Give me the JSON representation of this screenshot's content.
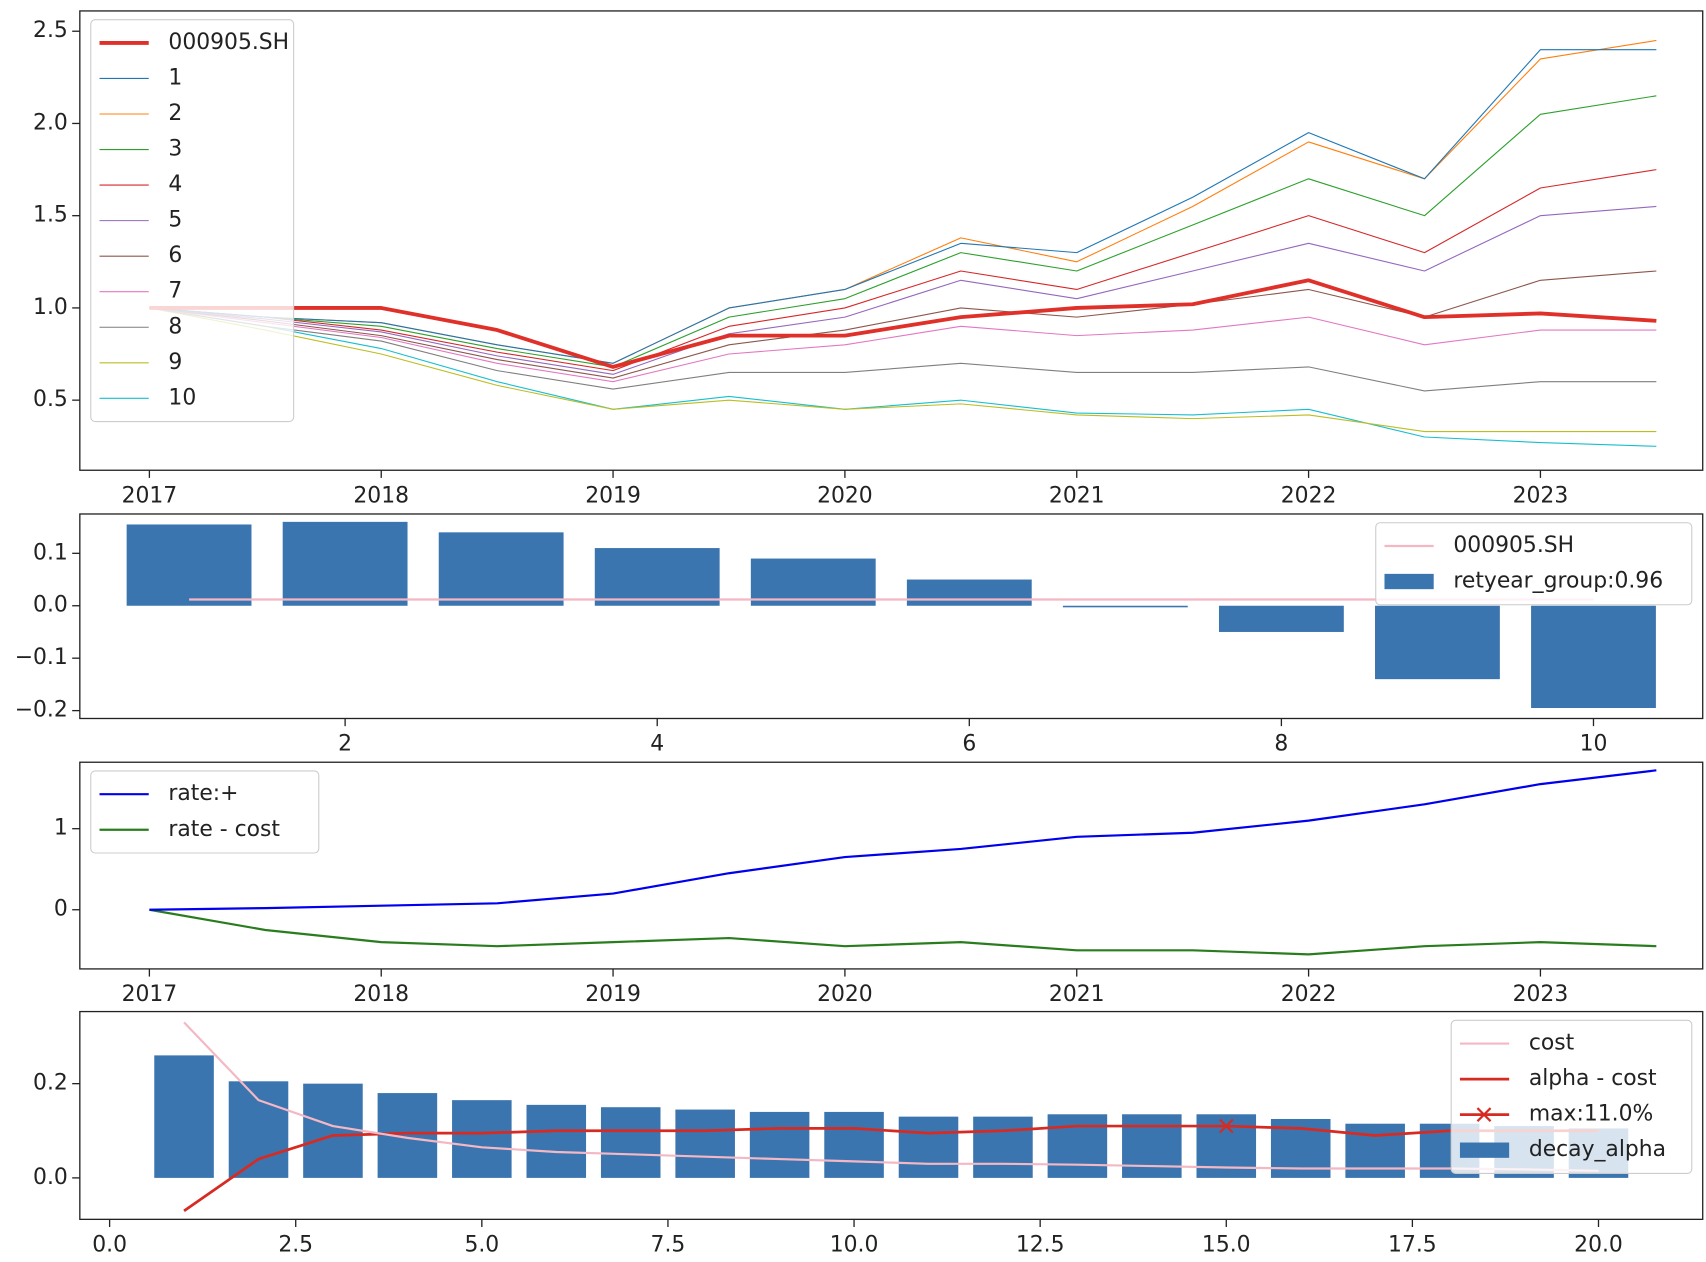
{
  "chart_data": [
    {
      "type": "line",
      "x": [
        2017.0,
        2017.5,
        2018.0,
        2018.5,
        2019.0,
        2019.5,
        2020.0,
        2020.5,
        2021.0,
        2021.5,
        2022.0,
        2022.5,
        2023.0,
        2023.5
      ],
      "xlim": [
        2016.7,
        2023.7
      ],
      "xticks": [
        2017,
        2018,
        2019,
        2020,
        2021,
        2022,
        2023
      ],
      "ylim": [
        0.12,
        2.61
      ],
      "yticks": [
        0.5,
        {
          "value": 1.0,
          "label": "1.0"
        },
        1.5,
        {
          "value": 2.0,
          "label": "2.0"
        },
        2.5
      ],
      "legend": "upper left",
      "series": [
        {
          "name": "000905.SH",
          "color": "#e0302a",
          "linewidth": 3.5,
          "values": [
            1.0,
            1.0,
            1.0,
            0.88,
            0.68,
            0.85,
            0.85,
            0.95,
            1.0,
            1.02,
            1.15,
            0.95,
            0.97,
            0.93
          ]
        },
        {
          "name": "1",
          "color": "#1f77b4",
          "linewidth": 1,
          "values": [
            1.0,
            0.95,
            0.92,
            0.8,
            0.7,
            1.0,
            1.1,
            1.35,
            1.3,
            1.6,
            1.95,
            1.7,
            2.4,
            2.4
          ]
        },
        {
          "name": "2",
          "color": "#ff7f0e",
          "linewidth": 1,
          "values": [
            1.0,
            0.95,
            0.92,
            0.8,
            0.7,
            1.0,
            1.1,
            1.38,
            1.25,
            1.55,
            1.9,
            1.7,
            2.35,
            2.45
          ]
        },
        {
          "name": "3",
          "color": "#2ca02c",
          "linewidth": 1,
          "values": [
            1.0,
            0.95,
            0.9,
            0.78,
            0.68,
            0.95,
            1.05,
            1.3,
            1.2,
            1.45,
            1.7,
            1.5,
            2.05,
            2.15
          ]
        },
        {
          "name": "4",
          "color": "#d62728",
          "linewidth": 1,
          "values": [
            1.0,
            0.95,
            0.88,
            0.76,
            0.66,
            0.9,
            1.0,
            1.2,
            1.1,
            1.3,
            1.5,
            1.3,
            1.65,
            1.75
          ]
        },
        {
          "name": "5",
          "color": "#9467bd",
          "linewidth": 1,
          "values": [
            1.0,
            0.94,
            0.87,
            0.74,
            0.64,
            0.86,
            0.95,
            1.15,
            1.05,
            1.2,
            1.35,
            1.2,
            1.5,
            1.55
          ]
        },
        {
          "name": "6",
          "color": "#8c564b",
          "linewidth": 1,
          "values": [
            1.0,
            0.93,
            0.85,
            0.72,
            0.62,
            0.8,
            0.88,
            1.0,
            0.95,
            1.02,
            1.1,
            0.95,
            1.15,
            1.2
          ]
        },
        {
          "name": "7",
          "color": "#e377c2",
          "linewidth": 1,
          "values": [
            1.0,
            0.92,
            0.84,
            0.7,
            0.6,
            0.75,
            0.8,
            0.9,
            0.85,
            0.88,
            0.95,
            0.8,
            0.88,
            0.88
          ]
        },
        {
          "name": "8",
          "color": "#7f7f7f",
          "linewidth": 1,
          "values": [
            1.0,
            0.9,
            0.82,
            0.66,
            0.56,
            0.65,
            0.65,
            0.7,
            0.65,
            0.65,
            0.68,
            0.55,
            0.6,
            0.6
          ]
        },
        {
          "name": "9",
          "color": "#bcbd22",
          "linewidth": 1,
          "values": [
            1.0,
            0.88,
            0.75,
            0.58,
            0.45,
            0.5,
            0.45,
            0.48,
            0.42,
            0.4,
            0.42,
            0.33,
            0.33,
            0.33
          ]
        },
        {
          "name": "10",
          "color": "#17becf",
          "linewidth": 1,
          "values": [
            1.0,
            0.9,
            0.78,
            0.6,
            0.45,
            0.52,
            0.45,
            0.5,
            0.43,
            0.42,
            0.45,
            0.3,
            0.27,
            0.25
          ]
        }
      ]
    },
    {
      "type": "bar",
      "x": [
        1,
        2,
        3,
        4,
        5,
        6,
        7,
        8,
        9,
        10
      ],
      "xlim": [
        0.3,
        10.7
      ],
      "xticks": [
        2,
        4,
        6,
        8,
        10
      ],
      "ylim": [
        -0.215,
        0.175
      ],
      "yticks": [
        {
          "value": -0.2,
          "label": "−0.2"
        },
        {
          "value": -0.1,
          "label": "−0.1"
        },
        {
          "value": 0.0,
          "label": "0.0"
        },
        0.1
      ],
      "legend": "upper right",
      "bar_width": 0.8,
      "series": [
        {
          "name": "000905.SH",
          "type": "line",
          "color": "#f4b8c4",
          "linewidth": 2,
          "values": [
            0.012,
            0.012,
            0.012,
            0.012,
            0.012,
            0.012,
            0.012,
            0.012,
            0.012,
            0.012
          ]
        },
        {
          "name": "retyear_group:0.96",
          "type": "bar",
          "color": "#3b75af",
          "values": [
            0.155,
            0.16,
            0.14,
            0.11,
            0.09,
            0.05,
            -0.003,
            -0.05,
            -0.14,
            -0.195
          ]
        }
      ]
    },
    {
      "type": "line",
      "x": [
        2017.0,
        2017.5,
        2018.0,
        2018.5,
        2019.0,
        2019.5,
        2020.0,
        2020.5,
        2021.0,
        2021.5,
        2022.0,
        2022.5,
        2023.0,
        2023.5
      ],
      "xlim": [
        2016.7,
        2023.7
      ],
      "xticks": [
        2017,
        2018,
        2019,
        2020,
        2021,
        2022,
        2023
      ],
      "ylim": [
        -0.73,
        1.82
      ],
      "yticks": [
        0,
        1
      ],
      "legend": "upper left",
      "series": [
        {
          "name": "rate:+",
          "color": "#0000ee",
          "linewidth": 2,
          "values": [
            0,
            0.02,
            0.05,
            0.08,
            0.2,
            0.45,
            0.65,
            0.75,
            0.9,
            0.95,
            1.1,
            1.3,
            1.55,
            1.72
          ]
        },
        {
          "name": "rate - cost",
          "color": "#2a7d1e",
          "linewidth": 2,
          "values": [
            0,
            -0.25,
            -0.4,
            -0.45,
            -0.4,
            -0.35,
            -0.45,
            -0.4,
            -0.5,
            -0.5,
            -0.55,
            -0.45,
            -0.4,
            -0.45
          ]
        }
      ]
    },
    {
      "type": "bar",
      "x": [
        1,
        2,
        3,
        4,
        5,
        6,
        7,
        8,
        9,
        10,
        11,
        12,
        13,
        14,
        15,
        16,
        17,
        18,
        19,
        20
      ],
      "xlim": [
        -0.4,
        21.4
      ],
      "xticks": [
        {
          "value": 0.0,
          "label": "0.0"
        },
        2.5,
        {
          "value": 5.0,
          "label": "5.0"
        },
        7.5,
        {
          "value": 10.0,
          "label": "10.0"
        },
        12.5,
        {
          "value": 15.0,
          "label": "15.0"
        },
        17.5,
        {
          "value": 20.0,
          "label": "20.0"
        }
      ],
      "ylim": [
        -0.088,
        0.353
      ],
      "yticks": [
        {
          "value": 0.0,
          "label": "0.0"
        },
        {
          "value": 0.2,
          "label": "0.2"
        }
      ],
      "legend": "upper right",
      "bar_width": 0.8,
      "series": [
        {
          "name": "cost",
          "type": "line",
          "color": "#f4b8c4",
          "linewidth": 2,
          "values": [
            0.33,
            0.165,
            0.11,
            0.085,
            0.065,
            0.055,
            0.05,
            0.045,
            0.04,
            0.035,
            0.03,
            0.03,
            0.028,
            0.025,
            0.022,
            0.02,
            0.02,
            0.02,
            0.018,
            0.015
          ]
        },
        {
          "name": "alpha - cost",
          "type": "line",
          "color": "#d62a22",
          "linewidth": 2.5,
          "values": [
            -0.07,
            0.04,
            0.09,
            0.095,
            0.095,
            0.1,
            0.1,
            0.1,
            0.105,
            0.105,
            0.095,
            0.1,
            0.11,
            0.11,
            0.11,
            0.105,
            0.09,
            0.1,
            0.1,
            0.1
          ]
        },
        {
          "name": "max:11.0%",
          "type": "marker",
          "color": "#d62a22",
          "x": [
            15
          ],
          "values": [
            0.11
          ]
        },
        {
          "name": "decay_alpha",
          "type": "bar",
          "color": "#3b75af",
          "values": [
            0.26,
            0.205,
            0.2,
            0.18,
            0.165,
            0.155,
            0.15,
            0.145,
            0.14,
            0.14,
            0.13,
            0.13,
            0.135,
            0.135,
            0.135,
            0.125,
            0.115,
            0.115,
            0.11,
            0.105
          ]
        }
      ]
    }
  ]
}
